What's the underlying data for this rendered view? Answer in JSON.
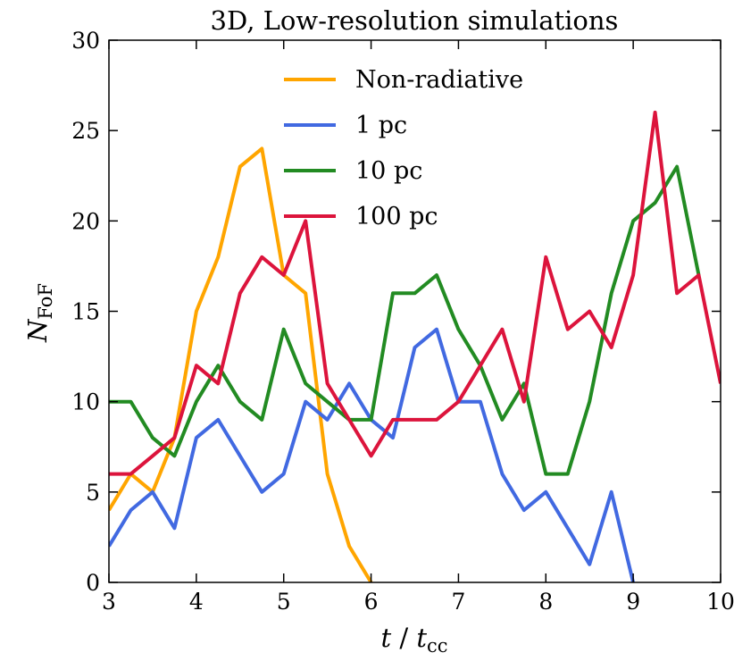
{
  "chart_data": {
    "type": "line",
    "title": "3D, Low-resolution simulations",
    "xlabel_main": "t",
    "xlabel_sep": " / ",
    "xlabel_base": "t",
    "xlabel_sub": "cc",
    "ylabel_main": "N",
    "ylabel_sub": "FoF",
    "xlim": [
      3,
      10
    ],
    "ylim": [
      0,
      30
    ],
    "xticks": [
      3,
      4,
      5,
      6,
      7,
      8,
      9,
      10
    ],
    "yticks": [
      0,
      5,
      10,
      15,
      20,
      25,
      30
    ],
    "legend_position": "top-center",
    "series": [
      {
        "name": "Non-radiative",
        "color": "#ffa500",
        "x": [
          3.0,
          3.25,
          3.5,
          3.75,
          4.0,
          4.25,
          4.5,
          4.75,
          5.0,
          5.25,
          5.5,
          5.75,
          6.0
        ],
        "y": [
          4,
          6,
          5,
          8,
          15,
          18,
          23,
          24,
          17,
          16,
          6,
          2,
          0
        ]
      },
      {
        "name": "1 pc",
        "color": "#4169e1",
        "x": [
          3.0,
          3.25,
          3.5,
          3.75,
          4.0,
          4.25,
          4.5,
          4.75,
          5.0,
          5.25,
          5.5,
          5.75,
          6.0,
          6.25,
          6.5,
          6.75,
          7.0,
          7.25,
          7.5,
          7.75,
          8.0,
          8.25,
          8.5,
          8.75,
          9.0
        ],
        "y": [
          2,
          4,
          5,
          3,
          8,
          9,
          7,
          5,
          6,
          10,
          9,
          11,
          9,
          8,
          13,
          14,
          10,
          10,
          6,
          4,
          5,
          3,
          1,
          5,
          0
        ]
      },
      {
        "name": "10 pc",
        "color": "#228b22",
        "x": [
          3.0,
          3.25,
          3.5,
          3.75,
          4.0,
          4.25,
          4.5,
          4.75,
          5.0,
          5.25,
          5.5,
          5.75,
          6.0,
          6.25,
          6.5,
          6.75,
          7.0,
          7.25,
          7.5,
          7.75,
          8.0,
          8.25,
          8.5,
          8.75,
          9.0,
          9.25,
          9.5,
          9.75
        ],
        "y": [
          10,
          10,
          8,
          7,
          10,
          12,
          10,
          9,
          14,
          11,
          10,
          9,
          9,
          16,
          16,
          17,
          14,
          12,
          9,
          11,
          6,
          6,
          10,
          16,
          20,
          21,
          23,
          17
        ]
      },
      {
        "name": "100 pc",
        "color": "#dc143c",
        "x": [
          3.0,
          3.25,
          3.5,
          3.75,
          4.0,
          4.25,
          4.5,
          4.75,
          5.0,
          5.25,
          5.5,
          5.75,
          6.0,
          6.25,
          6.5,
          6.75,
          7.0,
          7.25,
          7.5,
          7.75,
          8.0,
          8.25,
          8.5,
          8.75,
          9.0,
          9.25,
          9.5,
          9.75,
          10.0
        ],
        "y": [
          6,
          6,
          7,
          8,
          12,
          11,
          16,
          18,
          17,
          20,
          11,
          9,
          7,
          9,
          9,
          9,
          10,
          12,
          14,
          10,
          18,
          14,
          15,
          13,
          17,
          26,
          16,
          17,
          11
        ]
      }
    ]
  }
}
